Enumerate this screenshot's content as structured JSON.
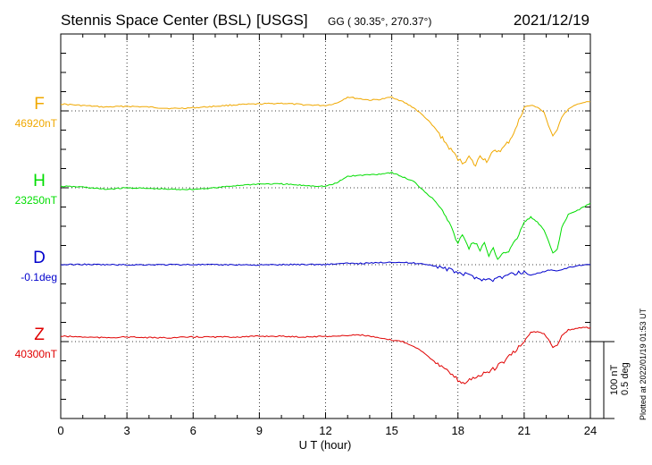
{
  "header": {
    "station": "Stennis Space Center (BSL)",
    "agency": "[USGS]",
    "coords": "GG ( 30.35°, 270.37°)",
    "date": "2021/12/19"
  },
  "side_notes": {
    "scale_nT": "100 nT",
    "scale_deg": "0.5 deg",
    "plotted": "Plotted at 2022/01/19 01:53 UT"
  },
  "chart_data": {
    "type": "line",
    "xlabel": "U T (hour)",
    "xlim": [
      0,
      24
    ],
    "xticks": [
      "0",
      "3",
      "6",
      "9",
      "12",
      "15",
      "18",
      "21",
      "24"
    ],
    "grid": true,
    "series": [
      {
        "name": "F",
        "baseline_label": "46920nT",
        "color": "#f0a800",
        "unit": "nT",
        "baseline": 46920,
        "x": [
          0,
          1,
          2,
          3,
          4,
          5,
          6,
          7,
          8,
          9,
          10,
          11,
          12,
          12.5,
          13,
          13.5,
          14,
          14.5,
          15,
          15.5,
          16,
          16.5,
          17,
          17.3,
          17.6,
          18,
          18.2,
          18.5,
          18.8,
          19,
          19.3,
          19.6,
          20,
          20.3,
          20.6,
          21,
          21.3,
          21.6,
          21.9,
          22.1,
          22.3,
          22.5,
          22.7,
          23,
          23.5,
          24
        ],
        "values": [
          46929,
          46927,
          46925,
          46926,
          46925,
          46923,
          46924,
          46926,
          46928,
          46929,
          46930,
          46928,
          46927,
          46930,
          46938,
          46936,
          46934,
          46935,
          46938,
          46932,
          46924,
          46912,
          46896,
          46884,
          46872,
          46858,
          46852,
          46860,
          46848,
          46862,
          46855,
          46866,
          46870,
          46880,
          46895,
          46925,
          46927,
          46925,
          46918,
          46900,
          46888,
          46896,
          46912,
          46922,
          46930,
          46932
        ]
      },
      {
        "name": "H",
        "baseline_label": "23250nT",
        "color": "#00dd00",
        "unit": "nT",
        "baseline": 23250,
        "x": [
          0,
          1,
          2,
          3,
          4,
          5,
          6,
          7,
          8,
          9,
          10,
          11,
          12,
          12.5,
          13,
          13.5,
          14,
          14.5,
          15,
          15.5,
          16,
          16.5,
          17,
          17.3,
          17.6,
          17.8,
          18,
          18.2,
          18.5,
          18.7,
          19,
          19.2,
          19.4,
          19.6,
          19.8,
          20,
          20.3,
          20.6,
          21,
          21.3,
          21.6,
          21.9,
          22.1,
          22.3,
          22.5,
          22.7,
          23,
          23.5,
          24
        ],
        "values": [
          23252,
          23251,
          23248,
          23250,
          23249,
          23248,
          23248,
          23250,
          23253,
          23255,
          23255,
          23253,
          23252,
          23256,
          23265,
          23266,
          23267,
          23268,
          23270,
          23264,
          23258,
          23245,
          23232,
          23222,
          23205,
          23190,
          23178,
          23188,
          23172,
          23180,
          23170,
          23177,
          23160,
          23170,
          23158,
          23165,
          23168,
          23180,
          23205,
          23212,
          23205,
          23195,
          23180,
          23165,
          23170,
          23198,
          23215,
          23222,
          23230
        ]
      },
      {
        "name": "D",
        "baseline_label": "-0.1deg",
        "color": "#0000cc",
        "unit": "deg",
        "baseline": -0.1,
        "x": [
          0,
          1,
          2,
          3,
          4,
          5,
          6,
          7,
          8,
          9,
          10,
          11,
          12,
          12.5,
          13,
          13.5,
          14,
          14.5,
          15,
          15.5,
          16,
          16.5,
          17,
          17.5,
          18,
          18.5,
          19,
          19.5,
          20,
          20.5,
          21,
          21.3,
          21.6,
          22,
          22.3,
          22.6,
          23,
          23.5,
          24
        ],
        "values": [
          -0.1,
          -0.098,
          -0.1,
          -0.101,
          -0.1,
          -0.1,
          -0.099,
          -0.101,
          -0.1,
          -0.102,
          -0.1,
          -0.098,
          -0.099,
          -0.094,
          -0.092,
          -0.092,
          -0.09,
          -0.086,
          -0.082,
          -0.086,
          -0.09,
          -0.096,
          -0.108,
          -0.13,
          -0.15,
          -0.17,
          -0.19,
          -0.2,
          -0.18,
          -0.16,
          -0.145,
          -0.17,
          -0.155,
          -0.14,
          -0.135,
          -0.14,
          -0.12,
          -0.105,
          -0.1
        ]
      },
      {
        "name": "Z",
        "baseline_label": "40300nT",
        "color": "#e00000",
        "unit": "nT",
        "baseline": 40300,
        "x": [
          0,
          1,
          2,
          3,
          4,
          5,
          6,
          7,
          8,
          9,
          10,
          11,
          12,
          12.5,
          13,
          13.5,
          14,
          14.5,
          15,
          15.5,
          16,
          16.5,
          17,
          17.5,
          18,
          18.3,
          18.6,
          19,
          19.5,
          20,
          20.5,
          21,
          21.3,
          21.6,
          21.9,
          22.1,
          22.3,
          22.5,
          22.7,
          23,
          23.5,
          24
        ],
        "values": [
          40307,
          40306,
          40305,
          40306,
          40305,
          40305,
          40306,
          40306,
          40306,
          40307,
          40307,
          40306,
          40307,
          40307,
          40308,
          40309,
          40307,
          40304,
          40302,
          40300,
          40294,
          40285,
          40272,
          40262,
          40250,
          40246,
          40252,
          40256,
          40262,
          40272,
          40285,
          40300,
          40312,
          40313,
          40310,
          40303,
          40293,
          40295,
          40308,
          40315,
          40318,
          40318
        ]
      }
    ]
  }
}
